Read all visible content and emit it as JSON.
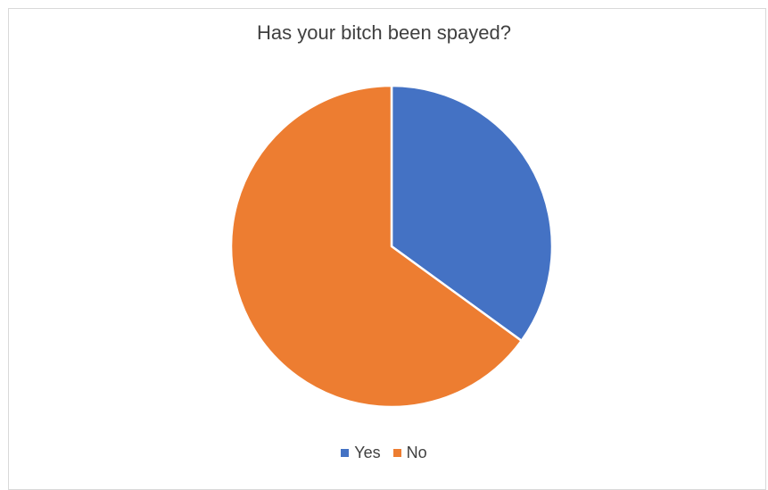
{
  "chart_data": {
    "type": "pie",
    "title": "Has your bitch been spayed?",
    "categories": [
      "Yes",
      "No"
    ],
    "values": [
      35,
      65
    ],
    "colors": [
      "#4472c4",
      "#ed7d31"
    ],
    "legend_position": "bottom"
  }
}
